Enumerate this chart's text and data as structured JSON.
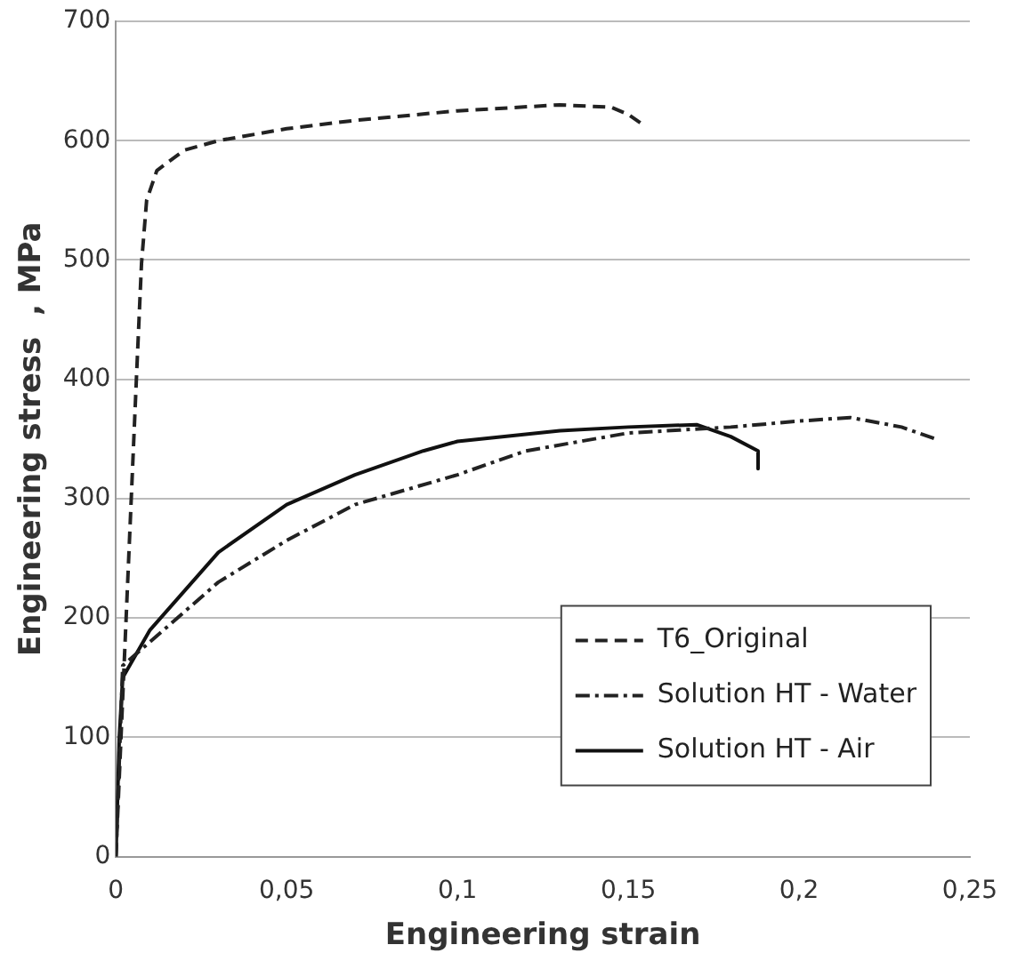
{
  "chart_data": {
    "type": "line",
    "xlabel": "Engineering strain",
    "ylabel": "Engineering stress  , MPa",
    "xlim": [
      0,
      0.25
    ],
    "xticks": [
      0,
      {
        "value": 0.05,
        "label": "0,05"
      },
      {
        "value": 0.1,
        "label": "0,1"
      },
      {
        "value": 0.15,
        "label": "0,15"
      },
      {
        "value": 0.2,
        "label": "0,2"
      },
      {
        "value": 0.25,
        "label": "0,25"
      }
    ],
    "ylim": [
      0,
      700
    ],
    "yticks": [
      0,
      100,
      200,
      300,
      400,
      500,
      600,
      700
    ],
    "grid": "y",
    "legend": "bottom right",
    "marker": "none",
    "series": [
      {
        "name": "T6_Original",
        "color": "#222222",
        "line_style": "dashed",
        "x": [
          0,
          0.003,
          0.006,
          0.0075,
          0.009,
          0.012,
          0.02,
          0.03,
          0.05,
          0.07,
          0.1,
          0.13,
          0.145,
          0.15,
          0.155
        ],
        "values": [
          0,
          200,
          400,
          497,
          550,
          575,
          592,
          600,
          610,
          617,
          625,
          630,
          628,
          622,
          612
        ]
      },
      {
        "name": "Solution HT - Water",
        "color": "#222222",
        "line_style": "dotted",
        "x": [
          0,
          0.002,
          0.01,
          0.03,
          0.05,
          0.07,
          0.1,
          0.12,
          0.15,
          0.18,
          0.2,
          0.215,
          0.23,
          0.24
        ],
        "values": [
          0,
          160,
          180,
          230,
          265,
          295,
          320,
          340,
          355,
          360,
          365,
          368,
          360,
          350
        ]
      },
      {
        "name": "Solution HT - Air",
        "color": "#111111",
        "line_style": "solid",
        "x": [
          0,
          0.001,
          0.002,
          0.01,
          0.03,
          0.05,
          0.07,
          0.09,
          0.1,
          0.13,
          0.15,
          0.17,
          0.18,
          0.188,
          0.188
        ],
        "values": [
          0,
          100,
          150,
          190,
          255,
          295,
          320,
          340,
          348,
          357,
          360,
          362,
          352,
          340,
          325
        ]
      }
    ]
  }
}
